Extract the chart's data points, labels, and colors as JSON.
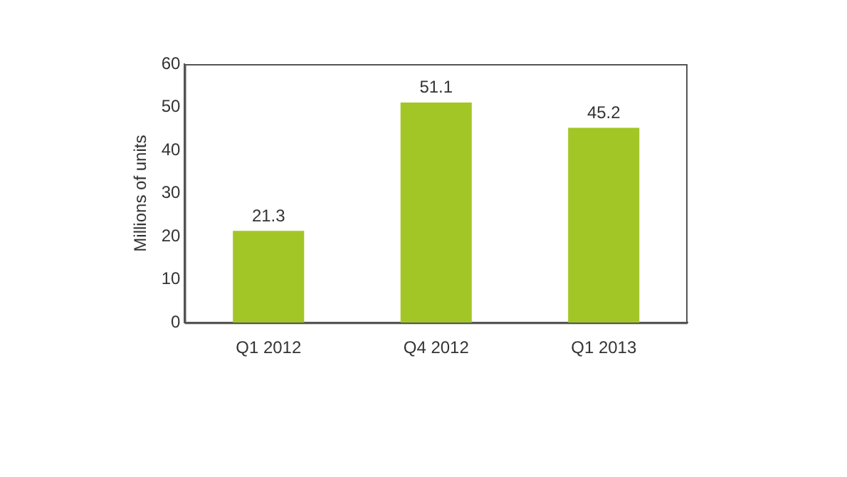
{
  "chart_data": {
    "type": "bar",
    "ylabel": "Millions of units",
    "categories": [
      "Q1 2012",
      "Q4 2012",
      "Q1 2013"
    ],
    "values": [
      21.3,
      51.1,
      45.2
    ],
    "color": "#a3c627",
    "ylim": [
      0,
      60
    ],
    "yticks": [
      0,
      10,
      20,
      30,
      40,
      50,
      60
    ],
    "grid": false,
    "legend": false,
    "data_labels": true
  }
}
